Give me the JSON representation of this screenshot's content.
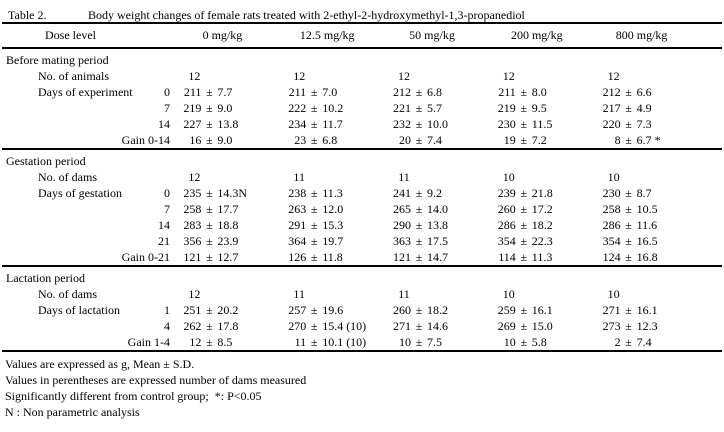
{
  "title": {
    "label": "Table 2.",
    "text": "Body weight changes of female rats treated with 2-ethyl-2-hydroxymethyl-1,3-propanediol"
  },
  "symbols": {
    "plus_minus": "±"
  },
  "header": {
    "dose_label": "Dose level",
    "columns": [
      "0 mg/kg",
      "12.5 mg/kg",
      "50 mg/kg",
      "200 mg/kg",
      "800 mg/kg"
    ]
  },
  "sections": [
    {
      "name": "Before mating period",
      "rows": [
        {
          "label": "No. of animals",
          "sub": "",
          "counts": [
            "12",
            "12",
            "12",
            "12",
            "12"
          ]
        },
        {
          "label": "Days of experiment",
          "sub": "0",
          "values": [
            [
              "211",
              "7.7"
            ],
            [
              "211",
              "7.0"
            ],
            [
              "212",
              "6.8"
            ],
            [
              "211",
              "8.0"
            ],
            [
              "212",
              "6.6"
            ]
          ]
        },
        {
          "label": "",
          "sub": "7",
          "values": [
            [
              "219",
              "9.0"
            ],
            [
              "222",
              "10.2"
            ],
            [
              "221",
              "5.7"
            ],
            [
              "219",
              "9.5"
            ],
            [
              "217",
              "4.9"
            ]
          ]
        },
        {
          "label": "",
          "sub": "14",
          "values": [
            [
              "227",
              "13.8"
            ],
            [
              "234",
              "11.7"
            ],
            [
              "232",
              "10.0"
            ],
            [
              "230",
              "11.5"
            ],
            [
              "220",
              "7.3"
            ]
          ]
        },
        {
          "label": "",
          "sub": "Gain 0-14",
          "values": [
            [
              "16",
              "9.0"
            ],
            [
              "23",
              "6.8"
            ],
            [
              "20",
              "7.4"
            ],
            [
              "19",
              "7.2"
            ],
            [
              "8",
              "6.7 *"
            ]
          ]
        }
      ]
    },
    {
      "name": "Gestation period",
      "rows": [
        {
          "label": "No. of dams",
          "sub": "",
          "counts": [
            "12",
            "11",
            "11",
            "10",
            "10"
          ]
        },
        {
          "label": "Days of gestation",
          "sub": "0",
          "values": [
            [
              "235",
              "14.3N"
            ],
            [
              "238",
              "11.3"
            ],
            [
              "241",
              "9.2"
            ],
            [
              "239",
              "21.8"
            ],
            [
              "230",
              "8.7"
            ]
          ]
        },
        {
          "label": "",
          "sub": "7",
          "values": [
            [
              "258",
              "17.7"
            ],
            [
              "263",
              "12.0"
            ],
            [
              "265",
              "14.0"
            ],
            [
              "260",
              "17.2"
            ],
            [
              "258",
              "10.5"
            ]
          ]
        },
        {
          "label": "",
          "sub": "14",
          "values": [
            [
              "283",
              "18.8"
            ],
            [
              "291",
              "15.3"
            ],
            [
              "290",
              "13.8"
            ],
            [
              "286",
              "18.2"
            ],
            [
              "286",
              "11.6"
            ]
          ]
        },
        {
          "label": "",
          "sub": "21",
          "values": [
            [
              "356",
              "23.9"
            ],
            [
              "364",
              "19.7"
            ],
            [
              "363",
              "17.5"
            ],
            [
              "354",
              "22.3"
            ],
            [
              "354",
              "16.5"
            ]
          ]
        },
        {
          "label": "",
          "sub": "Gain 0-21",
          "values": [
            [
              "121",
              "12.7"
            ],
            [
              "126",
              "11.8"
            ],
            [
              "121",
              "14.7"
            ],
            [
              "114",
              "11.3"
            ],
            [
              "124",
              "16.8"
            ]
          ]
        }
      ]
    },
    {
      "name": "Lactation period",
      "rows": [
        {
          "label": "No. of dams",
          "sub": "",
          "counts": [
            "12",
            "11",
            "11",
            "10",
            "10"
          ]
        },
        {
          "label": "Days of lactation",
          "sub": "1",
          "values": [
            [
              "251",
              "20.2"
            ],
            [
              "257",
              "19.6"
            ],
            [
              "260",
              "18.2"
            ],
            [
              "259",
              "16.1"
            ],
            [
              "271",
              "16.1"
            ]
          ]
        },
        {
          "label": "",
          "sub": "4",
          "values": [
            [
              "262",
              "17.8"
            ],
            [
              "270",
              "15.4 (10)"
            ],
            [
              "271",
              "14.6"
            ],
            [
              "269",
              "15.0"
            ],
            [
              "273",
              "12.3"
            ]
          ]
        },
        {
          "label": "",
          "sub": "Gain 1-4",
          "values": [
            [
              "12",
              "8.5"
            ],
            [
              "11",
              "10.1 (10)"
            ],
            [
              "10",
              "7.5"
            ],
            [
              "10",
              "5.8"
            ],
            [
              "2",
              "7.4"
            ]
          ]
        }
      ]
    }
  ],
  "footnotes": [
    "Values are expressed as g, Mean ± S.D.",
    "Values in perentheses are expressed number of dams measured",
    "Significantly different from control group;  *: P<0.05",
    "N : Non parametric analysis"
  ]
}
